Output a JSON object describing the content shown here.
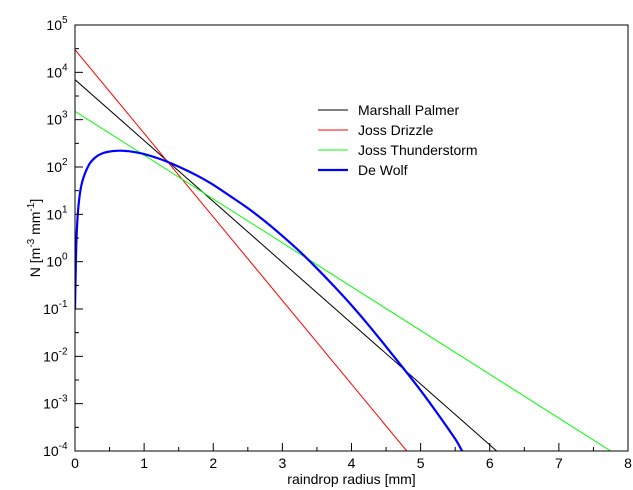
{
  "chart_data": {
    "type": "line",
    "title": "",
    "xlabel": "raindrop radius [mm]",
    "ylabel": {
      "prefix": "N [m",
      "exp1": "-3",
      "middle": " mm",
      "exp2": "-1",
      "suffix": "]"
    },
    "xlim": [
      0,
      8
    ],
    "ylim": [
      0.0001,
      100000
    ],
    "yscale": "log",
    "grid": false,
    "legend_position": "top-right",
    "x_ticks": [
      "0",
      "1",
      "2",
      "3",
      "4",
      "5",
      "6",
      "7",
      "8"
    ],
    "y_ticks": [
      {
        "base": "10",
        "exp": "-4"
      },
      {
        "base": "10",
        "exp": "-3"
      },
      {
        "base": "10",
        "exp": "-2"
      },
      {
        "base": "10",
        "exp": "-1"
      },
      {
        "base": "10",
        "exp": "0"
      },
      {
        "base": "10",
        "exp": "1"
      },
      {
        "base": "10",
        "exp": "2"
      },
      {
        "base": "10",
        "exp": "3"
      },
      {
        "base": "10",
        "exp": "4"
      },
      {
        "base": "10",
        "exp": "5"
      }
    ],
    "series": [
      {
        "name": "Marshall Palmer",
        "color": "#000000",
        "x": [
          0,
          6.1
        ],
        "y": [
          7000,
          0.0001
        ]
      },
      {
        "name": "Joss Drizzle",
        "color": "#ff0000",
        "x": [
          0,
          4.8
        ],
        "y": [
          30000,
          0.0001
        ]
      },
      {
        "name": "Joss Thunderstorm",
        "color": "#00ff00",
        "x": [
          0,
          7.75
        ],
        "y": [
          1500,
          0.0001
        ]
      },
      {
        "name": "De Wolf",
        "color": "#0000ff",
        "x": [
          0.0,
          0.02,
          0.05,
          0.1,
          0.2,
          0.3,
          0.4,
          0.5,
          0.6,
          0.7,
          0.8,
          0.9,
          1.0,
          1.2,
          1.4,
          1.6,
          1.8,
          2.0,
          2.25,
          2.5,
          2.75,
          3.0,
          3.25,
          3.5,
          3.75,
          4.0,
          4.25,
          4.5,
          4.75,
          5.0,
          5.25,
          5.5,
          5.75,
          5.95
        ],
        "y": [
          0.1,
          2.6,
          15,
          46,
          110,
          162,
          195,
          212,
          220,
          220,
          213,
          202,
          188,
          153,
          118,
          87,
          62,
          42,
          24,
          13.5,
          7.1,
          3.5,
          1.65,
          0.72,
          0.3,
          0.12,
          0.045,
          0.016,
          0.0056,
          0.0019,
          0.0006,
          0.00018,
          5e-05,
          0.0001
        ]
      }
    ]
  }
}
